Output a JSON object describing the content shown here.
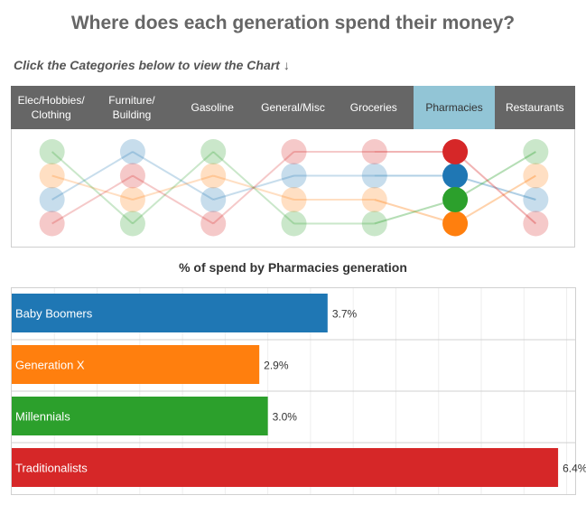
{
  "title": "Where does each generation spend their money?",
  "subtitle": "Click the Categories below to view the Chart",
  "subtitle_arrow": "↓",
  "categories": [
    {
      "label": "Elec/Hobbies/\nClothing",
      "selected": false
    },
    {
      "label": "Furniture/\nBuilding",
      "selected": false
    },
    {
      "label": "Gasoline",
      "selected": false
    },
    {
      "label": "General/Misc",
      "selected": false
    },
    {
      "label": "Groceries",
      "selected": false
    },
    {
      "label": "Pharmacies",
      "selected": true
    },
    {
      "label": "Restaurants",
      "selected": false
    }
  ],
  "colors": {
    "Baby Boomers": "#1f77b4",
    "Generation X": "#ff7f0e",
    "Millennials": "#2ca02c",
    "Traditionalists": "#d62728"
  },
  "slope_rank_data": {
    "note_order": "rank 1 = top",
    "Traditionalists": [
      4,
      2,
      4,
      1,
      1,
      1,
      4
    ],
    "Baby Boomers": [
      3,
      1,
      3,
      2,
      2,
      2,
      3
    ],
    "Millennials": [
      1,
      4,
      1,
      4,
      4,
      3,
      1
    ],
    "Generation X": [
      2,
      3,
      2,
      3,
      3,
      4,
      2
    ]
  },
  "chart_data": {
    "type": "bar",
    "title": "% of spend by Pharmacies  generation",
    "categories": [
      "Baby Boomers",
      "Generation X",
      "Millennials",
      "Traditionalists"
    ],
    "values": [
      3.7,
      2.9,
      3.0,
      6.4
    ],
    "value_labels": [
      "3.7%",
      "2.9%",
      "3.0%",
      "6.4%"
    ],
    "xlim": [
      0,
      6.6
    ],
    "grid": true
  }
}
